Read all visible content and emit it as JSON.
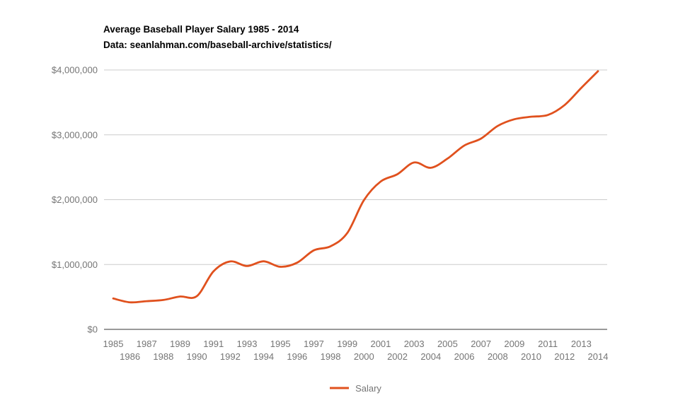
{
  "header": {
    "title": "Average Baseball Player Salary 1985 - 2014",
    "subtitle": "Data: seanlahman.com/baseball-archive/statistics/"
  },
  "colors": {
    "series": "#e0511e",
    "grid": "#cccccc",
    "axis": "#333333",
    "tick_labels": "#757575",
    "title_text": "#000000",
    "legend_text": "#757575",
    "background": "#ffffff"
  },
  "chart_data": {
    "type": "line",
    "title": "Average Baseball Player Salary 1985 - 2014",
    "subtitle": "Data: seanlahman.com/baseball-archive/statistics/",
    "smooth": true,
    "grid": "horizontal",
    "legend_position": "bottom",
    "x_tick_stagger": true,
    "xlabel": "",
    "ylabel": "",
    "ylim": [
      0,
      4000000
    ],
    "yticks": {
      "values": [
        0,
        1000000,
        2000000,
        3000000,
        4000000
      ],
      "labels": [
        "$0",
        "$1,000,000",
        "$2,000,000",
        "$3,000,000",
        "$4,000,000"
      ]
    },
    "x": [
      1985,
      1986,
      1987,
      1988,
      1989,
      1990,
      1991,
      1992,
      1993,
      1994,
      1995,
      1996,
      1997,
      1998,
      1999,
      2000,
      2001,
      2002,
      2003,
      2004,
      2005,
      2006,
      2007,
      2008,
      2009,
      2010,
      2011,
      2012,
      2013,
      2014
    ],
    "series": [
      {
        "name": "Salary",
        "values": [
          476299,
          417147,
          434730,
          453171,
          506323,
          511974,
          894961,
          1047521,
          976967,
          1049589,
          964979,
          1027909,
          1218688,
          1280845,
          1485317,
          1992985,
          2279841,
          2392527,
          2573473,
          2491776,
          2633831,
          2834521,
          2941436,
          3136517,
          3240207,
          3278747,
          3305393,
          3458421,
          3723344,
          3980446
        ]
      }
    ]
  }
}
